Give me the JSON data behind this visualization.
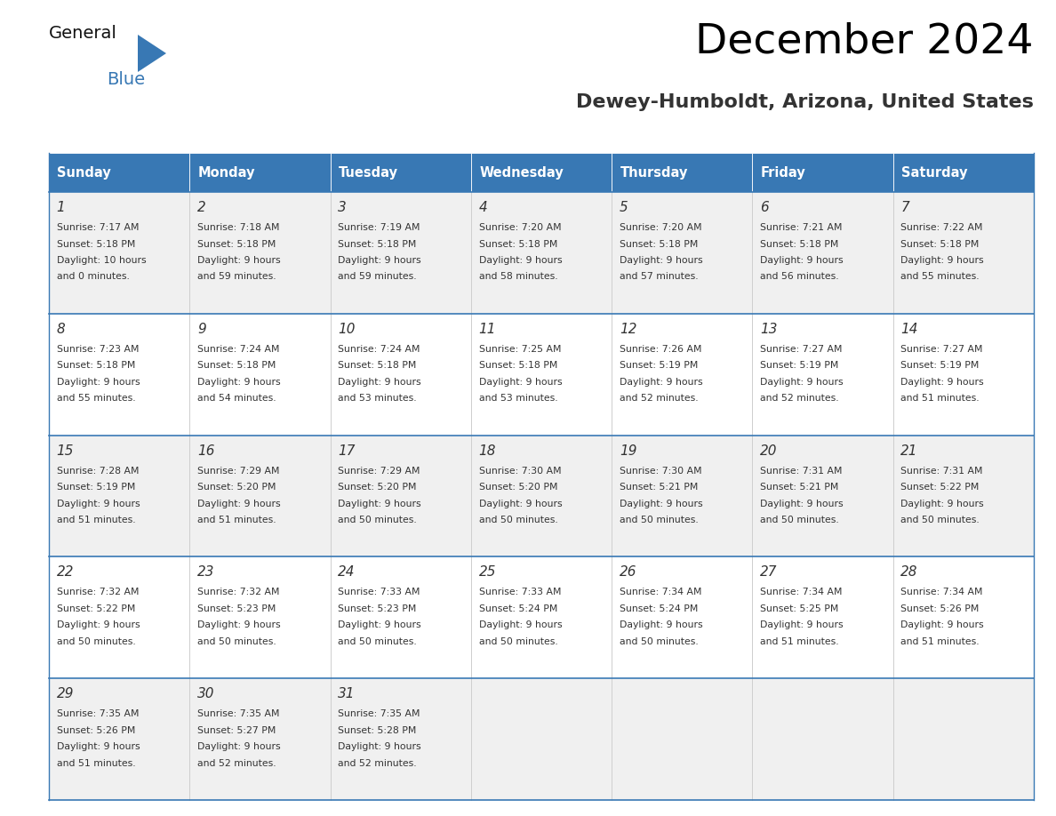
{
  "title": "December 2024",
  "subtitle": "Dewey-Humboldt, Arizona, United States",
  "header_color": "#3878b4",
  "header_text_color": "#ffffff",
  "border_color": "#3878b4",
  "text_color": "#333333",
  "days_of_week": [
    "Sunday",
    "Monday",
    "Tuesday",
    "Wednesday",
    "Thursday",
    "Friday",
    "Saturday"
  ],
  "calendar": [
    [
      {
        "day": "1",
        "sunrise": "7:17 AM",
        "sunset": "5:18 PM",
        "daylight_l1": "10 hours",
        "daylight_l2": "and 0 minutes."
      },
      {
        "day": "2",
        "sunrise": "7:18 AM",
        "sunset": "5:18 PM",
        "daylight_l1": "9 hours",
        "daylight_l2": "and 59 minutes."
      },
      {
        "day": "3",
        "sunrise": "7:19 AM",
        "sunset": "5:18 PM",
        "daylight_l1": "9 hours",
        "daylight_l2": "and 59 minutes."
      },
      {
        "day": "4",
        "sunrise": "7:20 AM",
        "sunset": "5:18 PM",
        "daylight_l1": "9 hours",
        "daylight_l2": "and 58 minutes."
      },
      {
        "day": "5",
        "sunrise": "7:20 AM",
        "sunset": "5:18 PM",
        "daylight_l1": "9 hours",
        "daylight_l2": "and 57 minutes."
      },
      {
        "day": "6",
        "sunrise": "7:21 AM",
        "sunset": "5:18 PM",
        "daylight_l1": "9 hours",
        "daylight_l2": "and 56 minutes."
      },
      {
        "day": "7",
        "sunrise": "7:22 AM",
        "sunset": "5:18 PM",
        "daylight_l1": "9 hours",
        "daylight_l2": "and 55 minutes."
      }
    ],
    [
      {
        "day": "8",
        "sunrise": "7:23 AM",
        "sunset": "5:18 PM",
        "daylight_l1": "9 hours",
        "daylight_l2": "and 55 minutes."
      },
      {
        "day": "9",
        "sunrise": "7:24 AM",
        "sunset": "5:18 PM",
        "daylight_l1": "9 hours",
        "daylight_l2": "and 54 minutes."
      },
      {
        "day": "10",
        "sunrise": "7:24 AM",
        "sunset": "5:18 PM",
        "daylight_l1": "9 hours",
        "daylight_l2": "and 53 minutes."
      },
      {
        "day": "11",
        "sunrise": "7:25 AM",
        "sunset": "5:18 PM",
        "daylight_l1": "9 hours",
        "daylight_l2": "and 53 minutes."
      },
      {
        "day": "12",
        "sunrise": "7:26 AM",
        "sunset": "5:19 PM",
        "daylight_l1": "9 hours",
        "daylight_l2": "and 52 minutes."
      },
      {
        "day": "13",
        "sunrise": "7:27 AM",
        "sunset": "5:19 PM",
        "daylight_l1": "9 hours",
        "daylight_l2": "and 52 minutes."
      },
      {
        "day": "14",
        "sunrise": "7:27 AM",
        "sunset": "5:19 PM",
        "daylight_l1": "9 hours",
        "daylight_l2": "and 51 minutes."
      }
    ],
    [
      {
        "day": "15",
        "sunrise": "7:28 AM",
        "sunset": "5:19 PM",
        "daylight_l1": "9 hours",
        "daylight_l2": "and 51 minutes."
      },
      {
        "day": "16",
        "sunrise": "7:29 AM",
        "sunset": "5:20 PM",
        "daylight_l1": "9 hours",
        "daylight_l2": "and 51 minutes."
      },
      {
        "day": "17",
        "sunrise": "7:29 AM",
        "sunset": "5:20 PM",
        "daylight_l1": "9 hours",
        "daylight_l2": "and 50 minutes."
      },
      {
        "day": "18",
        "sunrise": "7:30 AM",
        "sunset": "5:20 PM",
        "daylight_l1": "9 hours",
        "daylight_l2": "and 50 minutes."
      },
      {
        "day": "19",
        "sunrise": "7:30 AM",
        "sunset": "5:21 PM",
        "daylight_l1": "9 hours",
        "daylight_l2": "and 50 minutes."
      },
      {
        "day": "20",
        "sunrise": "7:31 AM",
        "sunset": "5:21 PM",
        "daylight_l1": "9 hours",
        "daylight_l2": "and 50 minutes."
      },
      {
        "day": "21",
        "sunrise": "7:31 AM",
        "sunset": "5:22 PM",
        "daylight_l1": "9 hours",
        "daylight_l2": "and 50 minutes."
      }
    ],
    [
      {
        "day": "22",
        "sunrise": "7:32 AM",
        "sunset": "5:22 PM",
        "daylight_l1": "9 hours",
        "daylight_l2": "and 50 minutes."
      },
      {
        "day": "23",
        "sunrise": "7:32 AM",
        "sunset": "5:23 PM",
        "daylight_l1": "9 hours",
        "daylight_l2": "and 50 minutes."
      },
      {
        "day": "24",
        "sunrise": "7:33 AM",
        "sunset": "5:23 PM",
        "daylight_l1": "9 hours",
        "daylight_l2": "and 50 minutes."
      },
      {
        "day": "25",
        "sunrise": "7:33 AM",
        "sunset": "5:24 PM",
        "daylight_l1": "9 hours",
        "daylight_l2": "and 50 minutes."
      },
      {
        "day": "26",
        "sunrise": "7:34 AM",
        "sunset": "5:24 PM",
        "daylight_l1": "9 hours",
        "daylight_l2": "and 50 minutes."
      },
      {
        "day": "27",
        "sunrise": "7:34 AM",
        "sunset": "5:25 PM",
        "daylight_l1": "9 hours",
        "daylight_l2": "and 51 minutes."
      },
      {
        "day": "28",
        "sunrise": "7:34 AM",
        "sunset": "5:26 PM",
        "daylight_l1": "9 hours",
        "daylight_l2": "and 51 minutes."
      }
    ],
    [
      {
        "day": "29",
        "sunrise": "7:35 AM",
        "sunset": "5:26 PM",
        "daylight_l1": "9 hours",
        "daylight_l2": "and 51 minutes."
      },
      {
        "day": "30",
        "sunrise": "7:35 AM",
        "sunset": "5:27 PM",
        "daylight_l1": "9 hours",
        "daylight_l2": "and 52 minutes."
      },
      {
        "day": "31",
        "sunrise": "7:35 AM",
        "sunset": "5:28 PM",
        "daylight_l1": "9 hours",
        "daylight_l2": "and 52 minutes."
      },
      null,
      null,
      null,
      null
    ]
  ]
}
